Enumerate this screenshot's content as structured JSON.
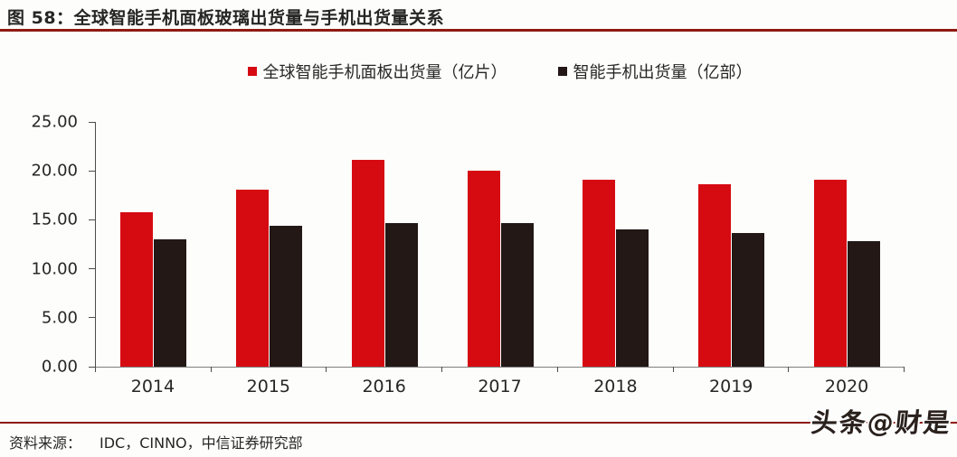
{
  "figure": {
    "title": "图 58：全球智能手机面板玻璃出货量与手机出货量关系",
    "source_label": "资料来源：",
    "source_text": "IDC，CINNO，中信证券研究部",
    "watermark": "头条@财是"
  },
  "colors": {
    "series_panel": "#d60b12",
    "series_phone": "#231815",
    "rule": "#8e1a12",
    "axis": "#4d4d4d",
    "text": "#262626"
  },
  "chart_data": {
    "type": "bar",
    "title": "图 58：全球智能手机面板玻璃出货量与手机出货量关系",
    "categories": [
      "2014",
      "2015",
      "2016",
      "2017",
      "2018",
      "2019",
      "2020"
    ],
    "series": [
      {
        "name": "全球智能手机面板出货量（亿片）",
        "color": "#d60b12",
        "values": [
          15.8,
          18.1,
          21.1,
          20.0,
          19.1,
          18.6,
          19.1
        ]
      },
      {
        "name": "智能手机出货量（亿部）",
        "color": "#231815",
        "values": [
          13.0,
          14.4,
          14.7,
          14.7,
          14.0,
          13.7,
          12.8
        ]
      }
    ],
    "xlabel": "",
    "ylabel": "",
    "ylim": [
      0,
      25
    ],
    "ytick_step": 5,
    "ytick_labels": [
      "0.00",
      "5.00",
      "10.00",
      "15.00",
      "20.00",
      "25.00"
    ],
    "grid": false,
    "legend_position": "top"
  }
}
